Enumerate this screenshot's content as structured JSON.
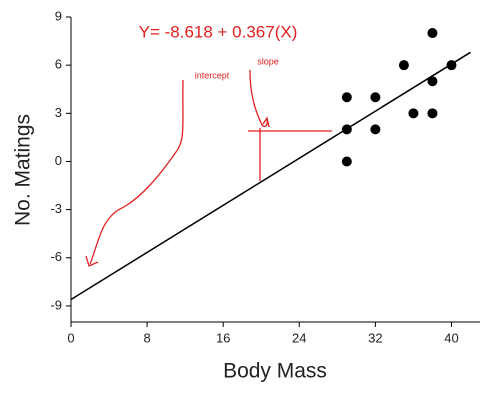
{
  "chart_data": {
    "type": "scatter",
    "x_label": "Body Mass",
    "y_label": "No. Matings",
    "x": [
      29,
      29,
      29,
      32,
      32,
      35,
      36,
      38,
      38,
      38,
      40
    ],
    "values": [
      4,
      2,
      0,
      4,
      2,
      6,
      3,
      8,
      5,
      3,
      6
    ],
    "color": "#000000",
    "fit_line": {
      "x": [
        0,
        42
      ],
      "values": [
        -8.6,
        6.8
      ],
      "color": "#000000"
    },
    "annotations": [
      "Y= -8.618 + 0.367(X)",
      "intercept",
      "slope"
    ],
    "annotation_color": "#e32020",
    "xlim": [
      0,
      43
    ],
    "xticks": [
      0,
      8,
      16,
      24,
      32,
      40
    ],
    "ylim": [
      -10,
      9
    ],
    "yticks": [
      -9,
      -6,
      -3,
      0,
      3,
      6,
      9
    ],
    "grid": false
  }
}
